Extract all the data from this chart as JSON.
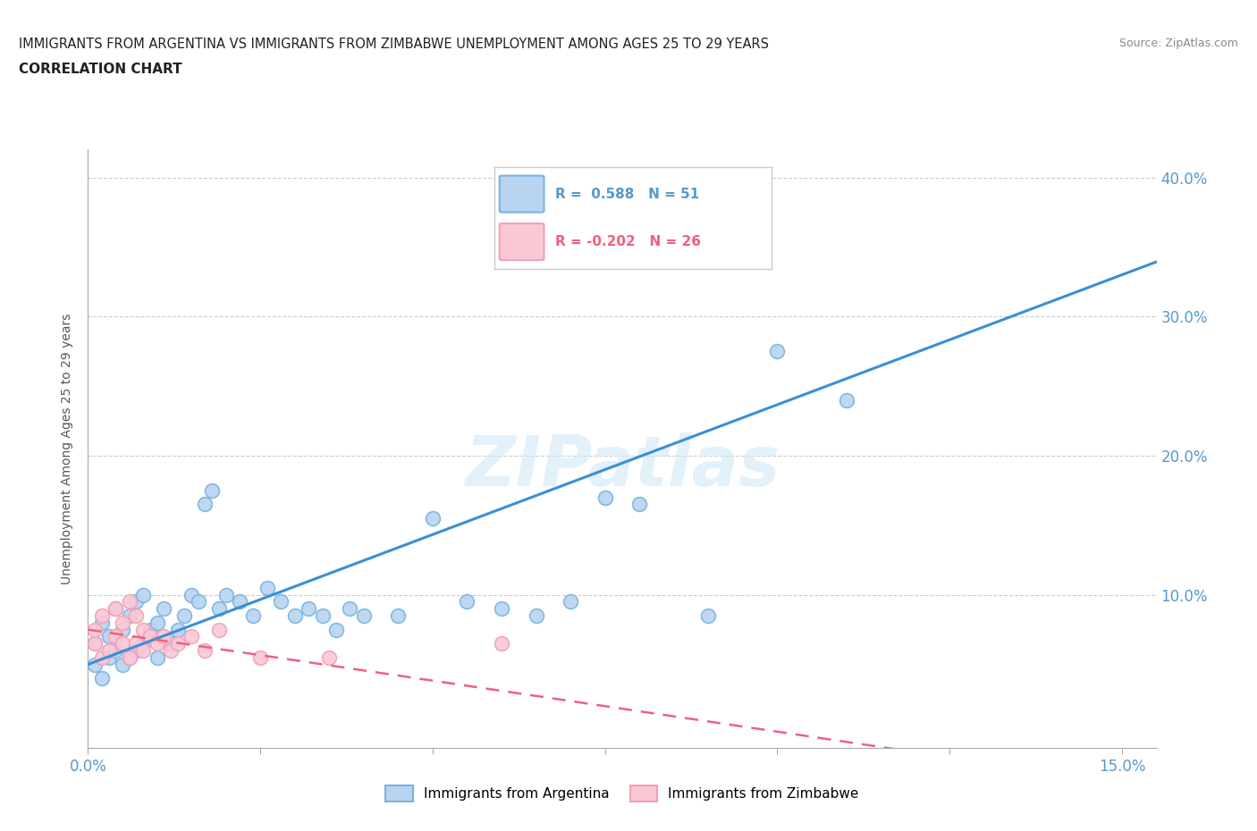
{
  "title_line1": "IMMIGRANTS FROM ARGENTINA VS IMMIGRANTS FROM ZIMBABWE UNEMPLOYMENT AMONG AGES 25 TO 29 YEARS",
  "title_line2": "CORRELATION CHART",
  "source": "Source: ZipAtlas.com",
  "ylabel_label": "Unemployment Among Ages 25 to 29 years",
  "xlim": [
    0.0,
    0.155
  ],
  "ylim": [
    -0.01,
    0.42
  ],
  "argentina_color": "#7ab3e0",
  "argentina_color_fill": "#b8d4f0",
  "zimbabwe_color": "#f4a0b5",
  "zimbabwe_color_fill": "#f9c8d5",
  "argentina_line_color": "#3a8fd4",
  "zimbabwe_line_color": "#f06080",
  "argentina_R": 0.588,
  "argentina_N": 51,
  "zimbabwe_R": -0.202,
  "zimbabwe_N": 26,
  "watermark": "ZIPatlas",
  "argentina_x": [
    0.001,
    0.001,
    0.002,
    0.002,
    0.003,
    0.003,
    0.004,
    0.004,
    0.005,
    0.005,
    0.006,
    0.006,
    0.007,
    0.007,
    0.008,
    0.008,
    0.009,
    0.009,
    0.01,
    0.01,
    0.011,
    0.012,
    0.013,
    0.014,
    0.015,
    0.016,
    0.017,
    0.018,
    0.019,
    0.02,
    0.022,
    0.024,
    0.026,
    0.028,
    0.03,
    0.032,
    0.034,
    0.036,
    0.038,
    0.04,
    0.045,
    0.05,
    0.055,
    0.06,
    0.065,
    0.07,
    0.075,
    0.08,
    0.09,
    0.1,
    0.11
  ],
  "argentina_y": [
    0.05,
    0.065,
    0.04,
    0.08,
    0.055,
    0.07,
    0.06,
    0.09,
    0.05,
    0.075,
    0.055,
    0.085,
    0.06,
    0.095,
    0.065,
    0.1,
    0.07,
    0.075,
    0.055,
    0.08,
    0.09,
    0.065,
    0.075,
    0.085,
    0.1,
    0.095,
    0.165,
    0.175,
    0.09,
    0.1,
    0.095,
    0.085,
    0.105,
    0.095,
    0.085,
    0.09,
    0.085,
    0.075,
    0.09,
    0.085,
    0.085,
    0.155,
    0.095,
    0.09,
    0.085,
    0.095,
    0.17,
    0.165,
    0.085,
    0.275,
    0.24
  ],
  "zimbabwe_x": [
    0.001,
    0.001,
    0.002,
    0.002,
    0.003,
    0.004,
    0.004,
    0.005,
    0.005,
    0.006,
    0.006,
    0.007,
    0.007,
    0.008,
    0.008,
    0.009,
    0.01,
    0.011,
    0.012,
    0.013,
    0.015,
    0.017,
    0.019,
    0.025,
    0.035,
    0.06
  ],
  "zimbabwe_y": [
    0.065,
    0.075,
    0.055,
    0.085,
    0.06,
    0.07,
    0.09,
    0.065,
    0.08,
    0.055,
    0.095,
    0.085,
    0.065,
    0.06,
    0.075,
    0.07,
    0.065,
    0.07,
    0.06,
    0.065,
    0.07,
    0.06,
    0.075,
    0.055,
    0.055,
    0.065
  ]
}
